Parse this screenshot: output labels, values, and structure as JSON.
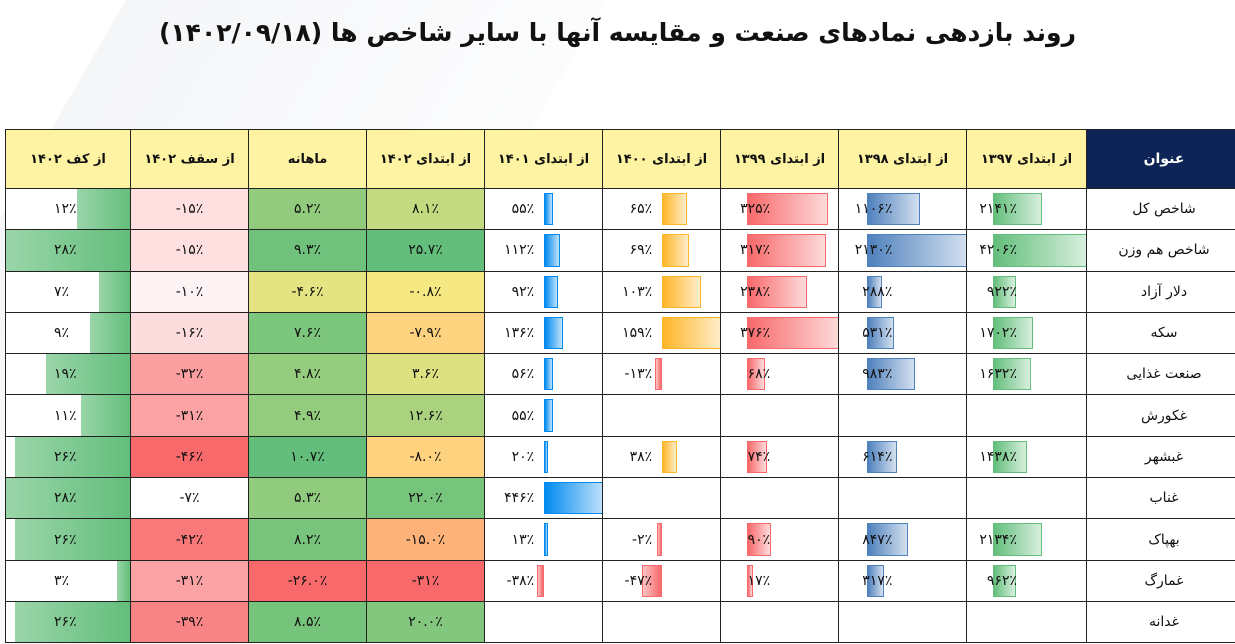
{
  "title": "روند بازدهی نمادهای صنعت و مقایسه آنها با سایر شاخص ها (۱۴۰۲/۰۹/۱۸)",
  "colors": {
    "header_bg": "#fef3a3",
    "corner_bg": "#0f2456",
    "blue_bar": "#4f81bd",
    "red_bar": "#f8696b",
    "orange_bar": "#ffb628",
    "green_bar": "#63be7b",
    "cyan_bar": "#008aef",
    "heat_green": "#63be7b",
    "heat_yellow": "#ffeb84",
    "heat_red": "#f8696b"
  },
  "table": {
    "corner_label": "عنوان",
    "columns": [
      {
        "key": "kaf",
        "label": "از کف ۱۴۰۲",
        "style": "bar-green-left"
      },
      {
        "key": "saqf",
        "label": "از سقف ۱۴۰۲",
        "style": "heat-red"
      },
      {
        "key": "mah",
        "label": "ماهانه",
        "style": "heat-rgy"
      },
      {
        "key": "y1402",
        "label": "از ابتدای ۱۴۰۲",
        "style": "heat-rgy"
      },
      {
        "key": "y1401",
        "label": "از ابتدای ۱۴۰۱",
        "style": "bar-cyan"
      },
      {
        "key": "y1400",
        "label": "از ابتدای ۱۴۰۰",
        "style": "bar-orange"
      },
      {
        "key": "y1399",
        "label": "از ابتدای ۱۳۹۹",
        "style": "bar-red"
      },
      {
        "key": "y1398",
        "label": "از ابتدای ۱۳۹۸",
        "style": "bar-blue"
      },
      {
        "key": "y1397",
        "label": "از ابتدای ۱۳۹۷",
        "style": "bar-green"
      }
    ],
    "rows": [
      {
        "name": "شاخص کل",
        "cells": {
          "kaf": {
            "text": "۱۲٪",
            "v": 12
          },
          "saqf": {
            "text": "-۱۵٪",
            "v": -15
          },
          "mah": {
            "text": "۵.۲٪",
            "v": 5.2
          },
          "y1402": {
            "text": "۸.۱٪",
            "v": 8.1
          },
          "y1401": {
            "text": "۵۵٪",
            "v": 55
          },
          "y1400": {
            "text": "۶۵٪",
            "v": 65
          },
          "y1399": {
            "text": "۳۲۵٪",
            "v": 325
          },
          "y1398": {
            "text": "۱۱۰۶٪",
            "v": 1106
          },
          "y1397": {
            "text": "۲۱۴۱٪",
            "v": 2141
          }
        }
      },
      {
        "name": "شاخص هم وزن",
        "cells": {
          "kaf": {
            "text": "۲۸٪",
            "v": 28
          },
          "saqf": {
            "text": "-۱۵٪",
            "v": -15
          },
          "mah": {
            "text": "۹.۳٪",
            "v": 9.3
          },
          "y1402": {
            "text": "۲۵.۷٪",
            "v": 25.7
          },
          "y1401": {
            "text": "۱۱۲٪",
            "v": 112
          },
          "y1400": {
            "text": "۶۹٪",
            "v": 69
          },
          "y1399": {
            "text": "۳۱۷٪",
            "v": 317
          },
          "y1398": {
            "text": "۲۱۳۰٪",
            "v": 2130
          },
          "y1397": {
            "text": "۴۲۰۶٪",
            "v": 4206
          }
        }
      },
      {
        "name": "دلار آزاد",
        "cells": {
          "kaf": {
            "text": "۷٪",
            "v": 7
          },
          "saqf": {
            "text": "-۱۰٪",
            "v": -10
          },
          "mah": {
            "text": "-۴.۶٪",
            "v": -4.6
          },
          "y1402": {
            "text": "-۰.۸٪",
            "v": -0.8
          },
          "y1401": {
            "text": "۹۲٪",
            "v": 92
          },
          "y1400": {
            "text": "۱۰۳٪",
            "v": 103
          },
          "y1399": {
            "text": "۲۳۸٪",
            "v": 238
          },
          "y1398": {
            "text": "۲۸۸٪",
            "v": 288
          },
          "y1397": {
            "text": "۹۲۲٪",
            "v": 922
          }
        }
      },
      {
        "name": "سکه",
        "cells": {
          "kaf": {
            "text": "۹٪",
            "v": 9
          },
          "saqf": {
            "text": "-۱۶٪",
            "v": -16
          },
          "mah": {
            "text": "۷.۶٪",
            "v": 7.6
          },
          "y1402": {
            "text": "-۷.۹٪",
            "v": -7.9
          },
          "y1401": {
            "text": "۱۳۶٪",
            "v": 136
          },
          "y1400": {
            "text": "۱۵۹٪",
            "v": 159
          },
          "y1399": {
            "text": "۳۷۶٪",
            "v": 376
          },
          "y1398": {
            "text": "۵۳۱٪",
            "v": 531
          },
          "y1397": {
            "text": "۱۷۰۲٪",
            "v": 1702
          }
        }
      },
      {
        "name": "صنعت غذایی",
        "cells": {
          "kaf": {
            "text": "۱۹٪",
            "v": 19
          },
          "saqf": {
            "text": "-۳۲٪",
            "v": -32
          },
          "mah": {
            "text": "۴.۸٪",
            "v": 4.8
          },
          "y1402": {
            "text": "۳.۶٪",
            "v": 3.6
          },
          "y1401": {
            "text": "۵۶٪",
            "v": 56
          },
          "y1400": {
            "text": "-۱۳٪",
            "v": -13
          },
          "y1399": {
            "text": "۶۸٪",
            "v": 68
          },
          "y1398": {
            "text": "۹۸۳٪",
            "v": 983
          },
          "y1397": {
            "text": "۱۶۳۲٪",
            "v": 1632
          }
        }
      },
      {
        "name": "غکورش",
        "cells": {
          "kaf": {
            "text": "۱۱٪",
            "v": 11
          },
          "saqf": {
            "text": "-۳۱٪",
            "v": -31
          },
          "mah": {
            "text": "۴.۹٪",
            "v": 4.9
          },
          "y1402": {
            "text": "۱۲.۶٪",
            "v": 12.6
          },
          "y1401": {
            "text": "۵۵٪",
            "v": 55
          },
          "y1400": {
            "text": "",
            "v": null
          },
          "y1399": {
            "text": "",
            "v": null
          },
          "y1398": {
            "text": "",
            "v": null
          },
          "y1397": {
            "text": "",
            "v": null
          }
        }
      },
      {
        "name": "غبشهر",
        "cells": {
          "kaf": {
            "text": "۲۶٪",
            "v": 26
          },
          "saqf": {
            "text": "-۴۶٪",
            "v": -46
          },
          "mah": {
            "text": "۱۰.۷٪",
            "v": 10.7
          },
          "y1402": {
            "text": "-۸.۰٪",
            "v": -8.0
          },
          "y1401": {
            "text": "۲۰٪",
            "v": 20
          },
          "y1400": {
            "text": "۳۸٪",
            "v": 38
          },
          "y1399": {
            "text": "۷۴٪",
            "v": 74
          },
          "y1398": {
            "text": "۶۱۴٪",
            "v": 614
          },
          "y1397": {
            "text": "۱۴۳۸٪",
            "v": 1438
          }
        }
      },
      {
        "name": "غناب",
        "cells": {
          "kaf": {
            "text": "۲۸٪",
            "v": 28
          },
          "saqf": {
            "text": "-۷٪",
            "v": -7
          },
          "mah": {
            "text": "۵.۳٪",
            "v": 5.3
          },
          "y1402": {
            "text": "۲۲.۰٪",
            "v": 22.0
          },
          "y1401": {
            "text": "۴۴۶٪",
            "v": 446
          },
          "y1400": {
            "text": "",
            "v": null
          },
          "y1399": {
            "text": "",
            "v": null
          },
          "y1398": {
            "text": "",
            "v": null
          },
          "y1397": {
            "text": "",
            "v": null
          }
        }
      },
      {
        "name": "بهپاک",
        "cells": {
          "kaf": {
            "text": "۲۶٪",
            "v": 26
          },
          "saqf": {
            "text": "-۴۲٪",
            "v": -42
          },
          "mah": {
            "text": "۸.۲٪",
            "v": 8.2
          },
          "y1402": {
            "text": "-۱۵.۰٪",
            "v": -15.0
          },
          "y1401": {
            "text": "۱۳٪",
            "v": 13
          },
          "y1400": {
            "text": "-۲٪",
            "v": -2
          },
          "y1399": {
            "text": "۹۰٪",
            "v": 90
          },
          "y1398": {
            "text": "۸۴۷٪",
            "v": 847
          },
          "y1397": {
            "text": "۲۱۳۴٪",
            "v": 2134
          }
        }
      },
      {
        "name": "غمارگ",
        "cells": {
          "kaf": {
            "text": "۳٪",
            "v": 3
          },
          "saqf": {
            "text": "-۳۱٪",
            "v": -31
          },
          "mah": {
            "text": "-۲۶.۰٪",
            "v": -26.0
          },
          "y1402": {
            "text": "-۳۱٪",
            "v": -31
          },
          "y1401": {
            "text": "-۳۸٪",
            "v": -38
          },
          "y1400": {
            "text": "-۴۷٪",
            "v": -47
          },
          "y1399": {
            "text": "۱۷٪",
            "v": 17
          },
          "y1398": {
            "text": "۳۱۷٪",
            "v": 317
          },
          "y1397": {
            "text": "۹۶۲٪",
            "v": 962
          }
        }
      },
      {
        "name": "غدانه",
        "cells": {
          "kaf": {
            "text": "۲۶٪",
            "v": 26
          },
          "saqf": {
            "text": "-۳۹٪",
            "v": -39
          },
          "mah": {
            "text": "۸.۵٪",
            "v": 8.5
          },
          "y1402": {
            "text": "۲۰.۰٪",
            "v": 20.0
          },
          "y1401": {
            "text": "",
            "v": null
          },
          "y1400": {
            "text": "",
            "v": null
          },
          "y1399": {
            "text": "",
            "v": null
          },
          "y1398": {
            "text": "",
            "v": null
          },
          "y1397": {
            "text": "",
            "v": null
          }
        }
      }
    ]
  }
}
